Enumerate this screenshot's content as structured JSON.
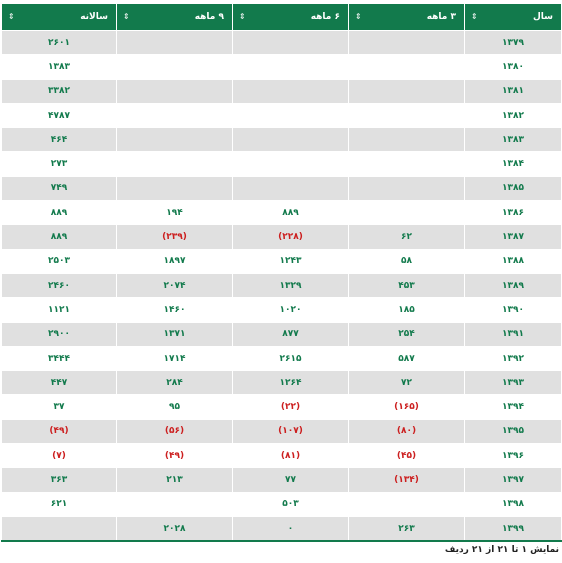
{
  "table": {
    "headers": [
      "سال",
      "۳ ماهه",
      "۶ ماهه",
      "۹ ماهه",
      "سالانه"
    ],
    "rows": [
      [
        "۱۳۷۹",
        null,
        null,
        null,
        "۲۶۰۱"
      ],
      [
        "۱۳۸۰",
        null,
        null,
        null,
        "۱۳۸۳"
      ],
      [
        "۱۳۸۱",
        null,
        null,
        null,
        "۳۳۸۲"
      ],
      [
        "۱۳۸۲",
        null,
        null,
        null,
        "۴۷۸۷"
      ],
      [
        "۱۳۸۳",
        null,
        null,
        null,
        "۴۶۴"
      ],
      [
        "۱۳۸۴",
        null,
        null,
        null,
        "۲۷۳"
      ],
      [
        "۱۳۸۵",
        null,
        null,
        null,
        "۷۴۹"
      ],
      [
        "۱۳۸۶",
        null,
        "۸۸۹",
        "۱۹۴",
        "۸۸۹"
      ],
      [
        "۱۳۸۷",
        "۶۲",
        "(۲۲۸)",
        "(۲۳۹)",
        "۸۸۹"
      ],
      [
        "۱۳۸۸",
        "۵۸",
        "۱۲۴۳",
        "۱۸۹۷",
        "۲۵۰۳"
      ],
      [
        "۱۳۸۹",
        "۴۵۳",
        "۱۳۲۹",
        "۲۰۷۴",
        "۲۴۶۰"
      ],
      [
        "۱۳۹۰",
        "۱۸۵",
        "۱۰۲۰",
        "۱۴۶۰",
        "۱۱۲۱"
      ],
      [
        "۱۳۹۱",
        "۲۵۴",
        "۸۷۷",
        "۱۳۷۱",
        "۲۹۰۰"
      ],
      [
        "۱۳۹۲",
        "۵۸۷",
        "۲۶۱۵",
        "۱۷۱۴",
        "۳۴۴۴"
      ],
      [
        "۱۳۹۳",
        "۷۲",
        "۱۲۶۴",
        "۲۸۴",
        "۴۴۷"
      ],
      [
        "۱۳۹۴",
        "(۱۶۵)",
        "(۲۲)",
        "۹۵",
        "۳۷"
      ],
      [
        "۱۳۹۵",
        "(۸۰)",
        "(۱۰۷)",
        "(۵۶)",
        "(۴۹)"
      ],
      [
        "۱۳۹۶",
        "(۴۵)",
        "(۸۱)",
        "(۴۹)",
        "(۷)"
      ],
      [
        "۱۳۹۷",
        "(۱۳۴)",
        "۷۷",
        "۲۱۳",
        "۳۶۳"
      ],
      [
        "۱۳۹۸",
        null,
        "۵۰۳",
        null,
        "۶۲۱"
      ],
      [
        "۱۳۹۹",
        "۲۶۳",
        "۰",
        "۲۰۲۸",
        null
      ]
    ]
  },
  "footer": "نمایش ۱ تا ۲۱ از ۲۱ ردیف"
}
